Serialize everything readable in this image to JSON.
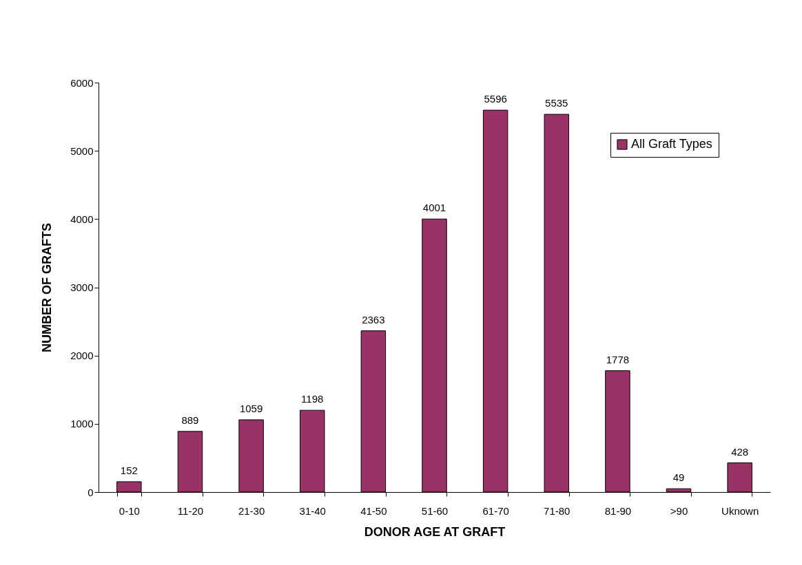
{
  "chart_data": {
    "type": "bar",
    "xlabel": "DONOR AGE AT GRAFT",
    "ylabel": "NUMBER OF GRAFTS",
    "categories": [
      "0-10",
      "11-20",
      "21-30",
      "31-40",
      "41-50",
      "51-60",
      "61-70",
      "71-80",
      "81-90",
      ">90",
      "Uknown"
    ],
    "series": [
      {
        "name": "All Graft Types",
        "color": "#993366",
        "values": [
          152,
          889,
          1059,
          1198,
          2363,
          4001,
          5596,
          5535,
          1778,
          49,
          428
        ]
      }
    ],
    "ylim": [
      0,
      6000
    ],
    "yticks": [
      0,
      1000,
      2000,
      3000,
      4000,
      5000,
      6000
    ],
    "grid": false,
    "legend": "top right",
    "data_labels": true
  }
}
